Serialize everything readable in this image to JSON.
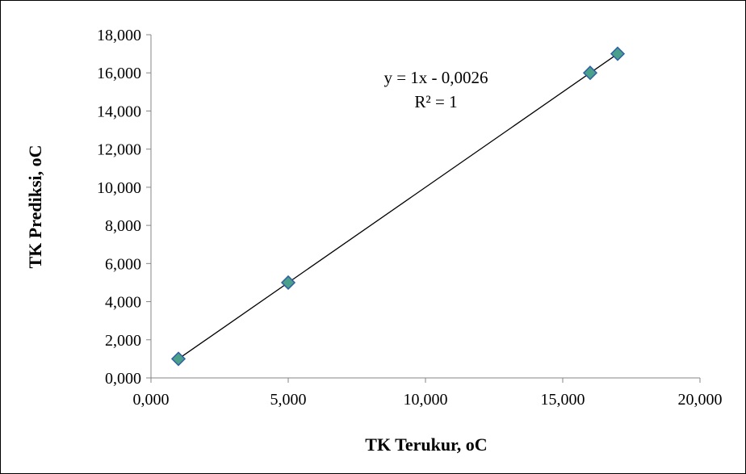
{
  "chart_data": {
    "type": "scatter",
    "xlabel": "TK Terukur, oC",
    "ylabel": "TK  Prediksi, oC",
    "xlim": [
      0,
      20
    ],
    "ylim": [
      0,
      18
    ],
    "x_ticks": [
      0,
      5,
      10,
      15,
      20
    ],
    "y_ticks": [
      0,
      2,
      4,
      6,
      8,
      10,
      12,
      14,
      16,
      18
    ],
    "x_tick_labels": [
      "0,000",
      "5,000",
      "10,000",
      "15,000",
      "20,000"
    ],
    "y_tick_labels": [
      "0,000",
      "2,000",
      "4,000",
      "6,000",
      "8,000",
      "10,000",
      "12,000",
      "14,000",
      "16,000",
      "18,000"
    ],
    "series": [
      {
        "x": [
          1,
          5,
          16,
          17
        ],
        "y": [
          1,
          5,
          16,
          17
        ],
        "marker": "diamond",
        "color": "#4aa08a",
        "marker_edge": "#2e5fa3"
      }
    ],
    "trendline": {
      "slope": 1,
      "intercept": -0.0026,
      "x_range": [
        1,
        17
      ],
      "color": "#000000"
    },
    "annotations": {
      "equation": "y = 1x - 0,0026",
      "r_squared": "R² = 1"
    },
    "grid": false,
    "legend": "none"
  }
}
